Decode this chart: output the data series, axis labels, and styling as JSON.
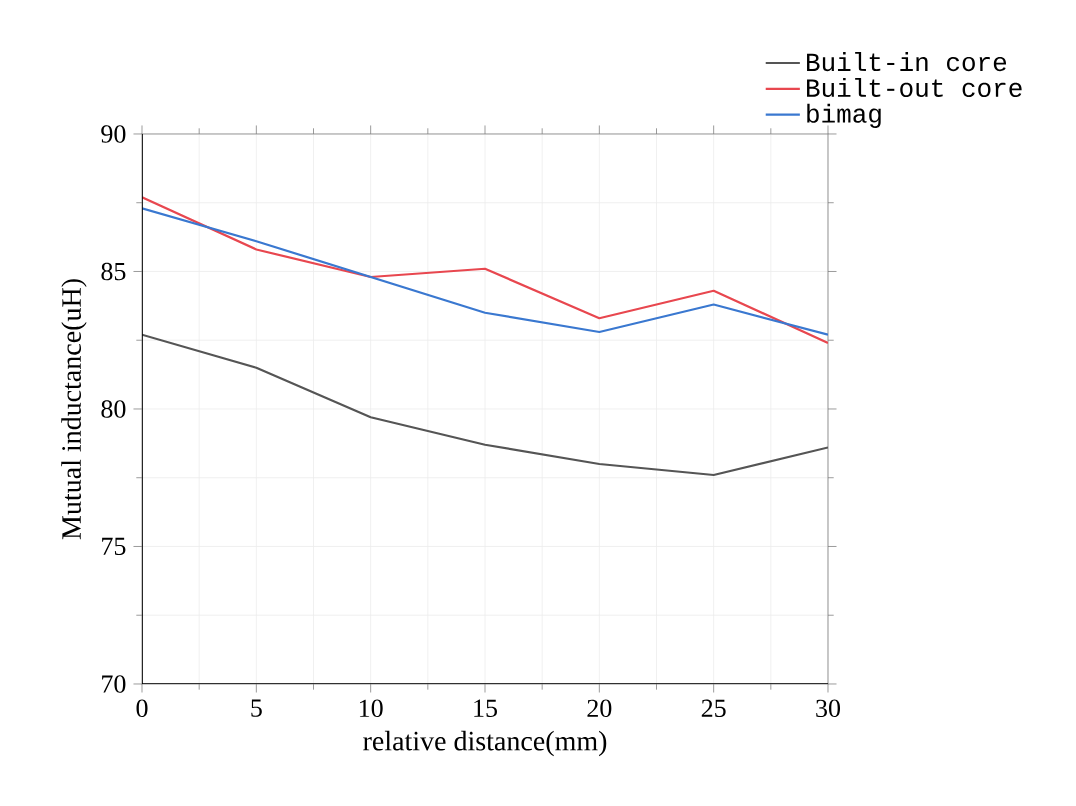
{
  "chart_data": {
    "type": "line",
    "xlabel": "relative distance(mm)",
    "ylabel": "Mutual inductance(uH)",
    "x": [
      0,
      5,
      10,
      15,
      20,
      25,
      30
    ],
    "series": [
      {
        "name": "Built-in core",
        "color": "#555555",
        "values": [
          82.7,
          81.5,
          79.7,
          78.7,
          78.0,
          77.6,
          78.6
        ]
      },
      {
        "name": "Built-out core",
        "color": "#e8474f",
        "values": [
          87.7,
          85.8,
          84.8,
          85.1,
          83.3,
          84.3,
          82.4
        ]
      },
      {
        "name": "bimag",
        "color": "#3a78d0",
        "values": [
          87.3,
          86.1,
          84.8,
          83.5,
          82.8,
          83.8,
          82.7
        ]
      }
    ],
    "xlim": [
      0,
      30
    ],
    "ylim": [
      70,
      90
    ],
    "xticks": [
      0,
      5,
      10,
      15,
      20,
      25,
      30
    ],
    "yticks": [
      70,
      75,
      80,
      85,
      90
    ],
    "grid": true,
    "legend": "top right",
    "marker": "none",
    "line_style": "solid"
  }
}
